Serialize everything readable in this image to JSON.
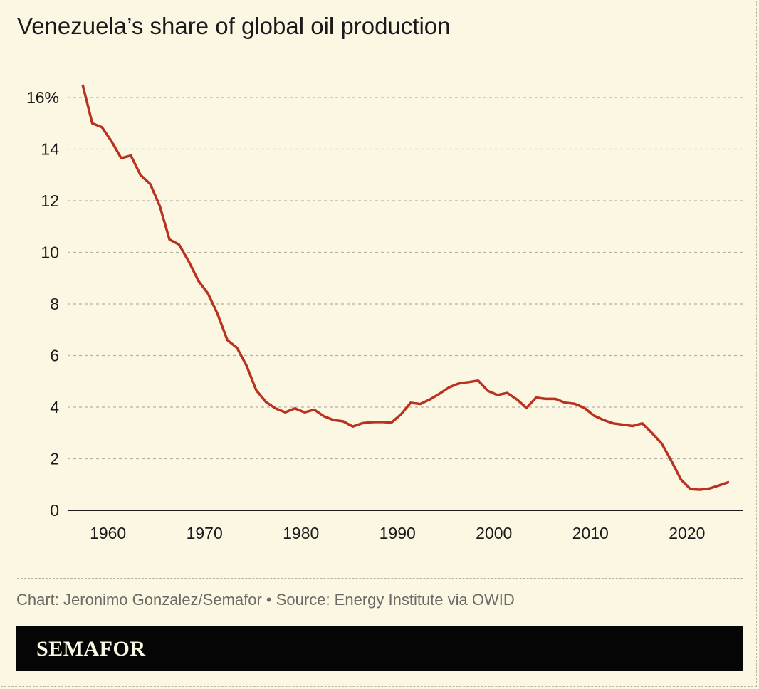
{
  "title": "Venezuela’s share of global oil production",
  "footer": "Chart: Jeronimo Gonzalez/Semafor • Source: Energy Institute via OWID",
  "brand": "SEMAFOR",
  "colors": {
    "line": "#b8321f",
    "background": "#fcf7e3",
    "grid": "#b5b1a3"
  },
  "chart_data": {
    "type": "line",
    "title": "Venezuela’s share of global oil production",
    "xlabel": "",
    "ylabel": "",
    "xlim": [
      1957,
      2024
    ],
    "ylim": [
      0,
      16
    ],
    "grid": true,
    "x_ticks": [
      "1960",
      "1970",
      "1980",
      "1990",
      "2000",
      "2010",
      "2020"
    ],
    "y_ticks": [
      "0",
      "2",
      "4",
      "6",
      "8",
      "10",
      "12",
      "14",
      "16%"
    ],
    "x": [
      1957,
      1958,
      1959,
      1960,
      1961,
      1962,
      1963,
      1964,
      1965,
      1966,
      1967,
      1968,
      1969,
      1970,
      1971,
      1972,
      1973,
      1974,
      1975,
      1976,
      1977,
      1978,
      1979,
      1980,
      1981,
      1982,
      1983,
      1984,
      1985,
      1986,
      1987,
      1988,
      1989,
      1990,
      1991,
      1992,
      1993,
      1994,
      1995,
      1996,
      1997,
      1998,
      1999,
      2000,
      2001,
      2002,
      2003,
      2004,
      2005,
      2006,
      2007,
      2008,
      2009,
      2010,
      2011,
      2012,
      2013,
      2014,
      2015,
      2016,
      2017,
      2018,
      2019,
      2020,
      2021,
      2022,
      2023,
      2024
    ],
    "values": [
      16.5,
      15.0,
      14.85,
      14.3,
      13.65,
      13.75,
      13.0,
      12.65,
      11.8,
      10.5,
      10.3,
      9.65,
      8.9,
      8.4,
      7.6,
      6.6,
      6.3,
      5.6,
      4.65,
      4.2,
      3.95,
      3.8,
      3.95,
      3.8,
      3.9,
      3.65,
      3.5,
      3.45,
      3.25,
      3.38,
      3.42,
      3.43,
      3.4,
      3.72,
      4.17,
      4.12,
      4.3,
      4.52,
      4.77,
      4.92,
      4.97,
      5.03,
      4.63,
      4.47,
      4.55,
      4.3,
      3.97,
      4.37,
      4.32,
      4.32,
      4.17,
      4.13,
      3.97,
      3.67,
      3.5,
      3.37,
      3.32,
      3.27,
      3.37,
      3.0,
      2.6,
      1.93,
      1.2,
      0.82,
      0.8,
      0.85,
      0.97,
      1.1
    ]
  }
}
